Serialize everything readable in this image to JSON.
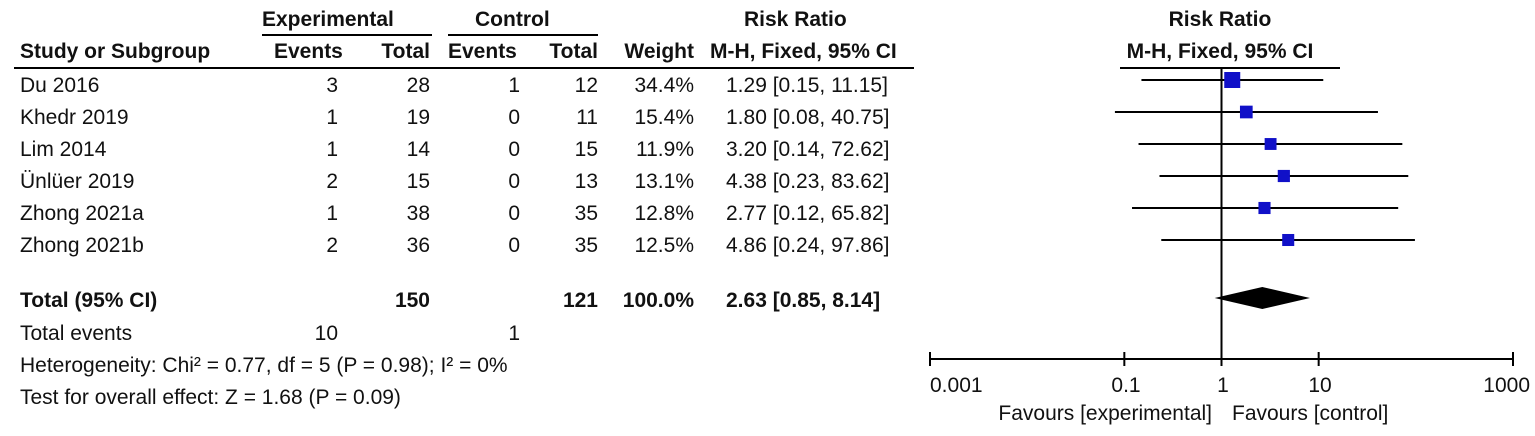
{
  "headers": {
    "experimental": "Experimental",
    "control": "Control",
    "risk_ratio": "Risk Ratio",
    "study": "Study or Subgroup",
    "events": "Events",
    "total": "Total",
    "weight": "Weight",
    "method": "M-H, Fixed, 95% CI",
    "plot_title": "Risk Ratio",
    "plot_method": "M-H, Fixed, 95% CI"
  },
  "studies": [
    {
      "name": "Du 2016",
      "exp_events": "3",
      "exp_total": "28",
      "ctl_events": "1",
      "ctl_total": "12",
      "weight": "34.4%",
      "ci_text": "1.29 [0.15, 11.15]"
    },
    {
      "name": "Khedr 2019",
      "exp_events": "1",
      "exp_total": "19",
      "ctl_events": "0",
      "ctl_total": "11",
      "weight": "15.4%",
      "ci_text": "1.80 [0.08, 40.75]"
    },
    {
      "name": "Lim 2014",
      "exp_events": "1",
      "exp_total": "14",
      "ctl_events": "0",
      "ctl_total": "15",
      "weight": "11.9%",
      "ci_text": "3.20 [0.14, 72.62]"
    },
    {
      "name": "Ünlüer 2019",
      "exp_events": "2",
      "exp_total": "15",
      "ctl_events": "0",
      "ctl_total": "13",
      "weight": "13.1%",
      "ci_text": "4.38 [0.23, 83.62]"
    },
    {
      "name": "Zhong 2021a",
      "exp_events": "1",
      "exp_total": "38",
      "ctl_events": "0",
      "ctl_total": "35",
      "weight": "12.8%",
      "ci_text": "2.77 [0.12, 65.82]"
    },
    {
      "name": "Zhong 2021b",
      "exp_events": "2",
      "exp_total": "36",
      "ctl_events": "0",
      "ctl_total": "35",
      "weight": "12.5%",
      "ci_text": "4.86 [0.24, 97.86]"
    }
  ],
  "total": {
    "label": "Total (95% CI)",
    "exp_total": "150",
    "ctl_total": "121",
    "weight": "100.0%",
    "ci_text": "2.63 [0.85, 8.14]"
  },
  "total_events": {
    "label": "Total events",
    "exp": "10",
    "ctl": "1"
  },
  "heterogeneity": "Heterogeneity: Chi² = 0.77, df = 5 (P = 0.98); I² = 0%",
  "overall_effect": "Test for overall effect: Z = 1.68 (P = 0.09)",
  "axis": {
    "ticks": [
      "0.001",
      "0.1",
      "1",
      "10",
      "1000"
    ],
    "favours_left": "Favours [experimental]",
    "favours_right": "Favours [control]"
  },
  "colors": {
    "marker": "#1010c8",
    "line": "#000000"
  },
  "chart_data": {
    "type": "forest",
    "scale": "log",
    "xlim": [
      0.001,
      1000
    ],
    "ticks": [
      0.001,
      0.1,
      1,
      10,
      1000
    ],
    "reference_line": 1,
    "studies": [
      {
        "name": "Du 2016",
        "rr": 1.29,
        "lo": 0.15,
        "hi": 11.15,
        "weight": 34.4
      },
      {
        "name": "Khedr 2019",
        "rr": 1.8,
        "lo": 0.08,
        "hi": 40.75,
        "weight": 15.4
      },
      {
        "name": "Lim 2014",
        "rr": 3.2,
        "lo": 0.14,
        "hi": 72.62,
        "weight": 11.9
      },
      {
        "name": "Ünlüer 2019",
        "rr": 4.38,
        "lo": 0.23,
        "hi": 83.62,
        "weight": 13.1
      },
      {
        "name": "Zhong 2021a",
        "rr": 2.77,
        "lo": 0.12,
        "hi": 65.82,
        "weight": 12.8
      },
      {
        "name": "Zhong 2021b",
        "rr": 4.86,
        "lo": 0.24,
        "hi": 97.86,
        "weight": 12.5
      }
    ],
    "pooled": {
      "rr": 2.63,
      "lo": 0.85,
      "hi": 8.14
    }
  }
}
